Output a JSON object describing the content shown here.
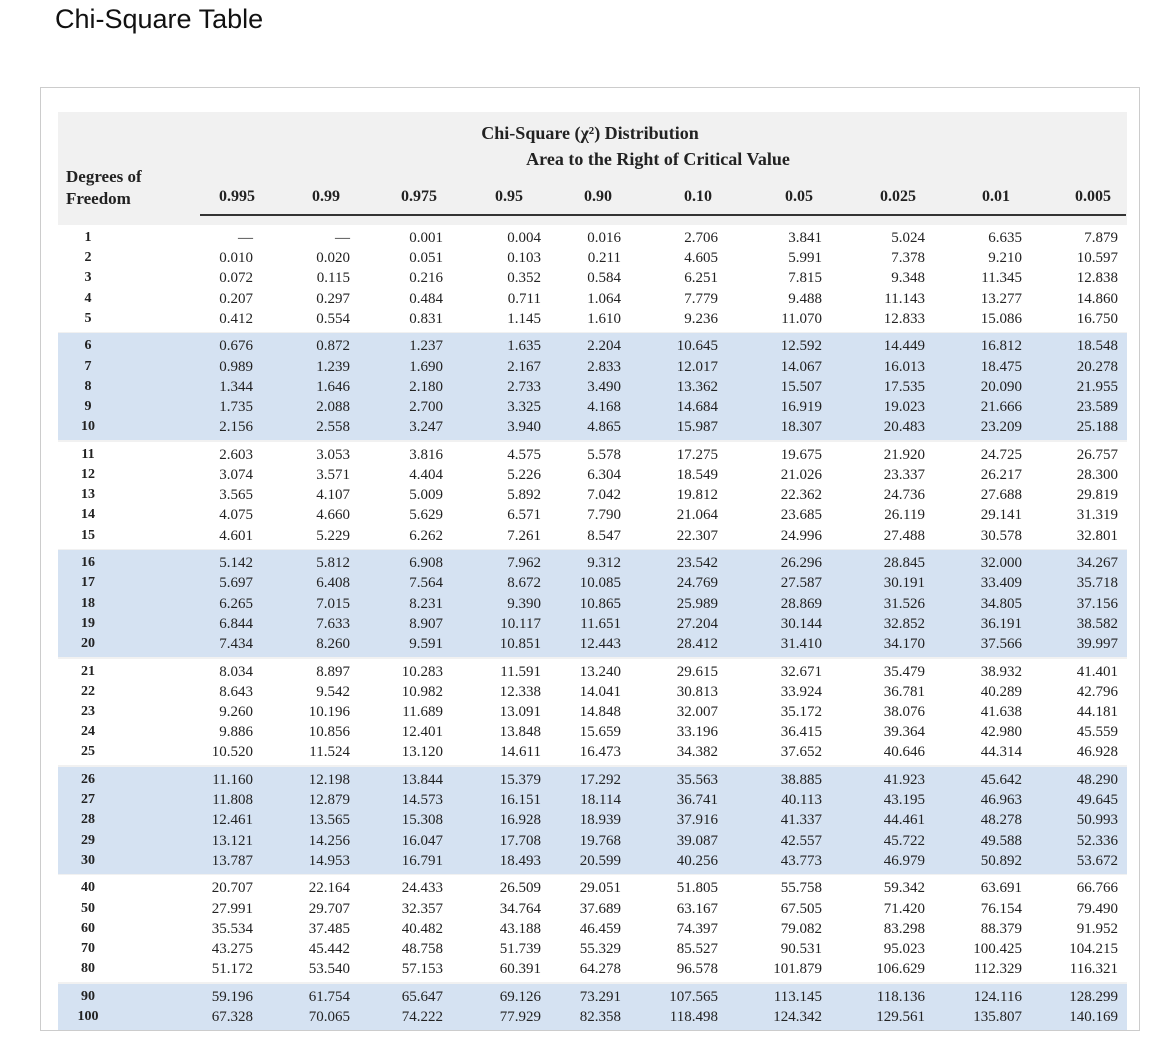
{
  "header": {
    "title": "Chi-Square Table"
  },
  "table": {
    "caption": [
      "Chi-Square (χ²) Distribution",
      "Area to the Right of Critical Value"
    ],
    "row_header": "Degrees of Freedom",
    "columns": [
      "0.995",
      "0.99",
      "0.975",
      "0.95",
      "0.90",
      "0.10",
      "0.05",
      "0.025",
      "0.01",
      "0.005"
    ],
    "groups": [
      [
        [
          "1",
          "—",
          "—",
          "0.001",
          "0.004",
          "0.016",
          "2.706",
          "3.841",
          "5.024",
          "6.635",
          "7.879"
        ],
        [
          "2",
          "0.010",
          "0.020",
          "0.051",
          "0.103",
          "0.211",
          "4.605",
          "5.991",
          "7.378",
          "9.210",
          "10.597"
        ],
        [
          "3",
          "0.072",
          "0.115",
          "0.216",
          "0.352",
          "0.584",
          "6.251",
          "7.815",
          "9.348",
          "11.345",
          "12.838"
        ],
        [
          "4",
          "0.207",
          "0.297",
          "0.484",
          "0.711",
          "1.064",
          "7.779",
          "9.488",
          "11.143",
          "13.277",
          "14.860"
        ],
        [
          "5",
          "0.412",
          "0.554",
          "0.831",
          "1.145",
          "1.610",
          "9.236",
          "11.070",
          "12.833",
          "15.086",
          "16.750"
        ]
      ],
      [
        [
          "6",
          "0.676",
          "0.872",
          "1.237",
          "1.635",
          "2.204",
          "10.645",
          "12.592",
          "14.449",
          "16.812",
          "18.548"
        ],
        [
          "7",
          "0.989",
          "1.239",
          "1.690",
          "2.167",
          "2.833",
          "12.017",
          "14.067",
          "16.013",
          "18.475",
          "20.278"
        ],
        [
          "8",
          "1.344",
          "1.646",
          "2.180",
          "2.733",
          "3.490",
          "13.362",
          "15.507",
          "17.535",
          "20.090",
          "21.955"
        ],
        [
          "9",
          "1.735",
          "2.088",
          "2.700",
          "3.325",
          "4.168",
          "14.684",
          "16.919",
          "19.023",
          "21.666",
          "23.589"
        ],
        [
          "10",
          "2.156",
          "2.558",
          "3.247",
          "3.940",
          "4.865",
          "15.987",
          "18.307",
          "20.483",
          "23.209",
          "25.188"
        ]
      ],
      [
        [
          "11",
          "2.603",
          "3.053",
          "3.816",
          "4.575",
          "5.578",
          "17.275",
          "19.675",
          "21.920",
          "24.725",
          "26.757"
        ],
        [
          "12",
          "3.074",
          "3.571",
          "4.404",
          "5.226",
          "6.304",
          "18.549",
          "21.026",
          "23.337",
          "26.217",
          "28.300"
        ],
        [
          "13",
          "3.565",
          "4.107",
          "5.009",
          "5.892",
          "7.042",
          "19.812",
          "22.362",
          "24.736",
          "27.688",
          "29.819"
        ],
        [
          "14",
          "4.075",
          "4.660",
          "5.629",
          "6.571",
          "7.790",
          "21.064",
          "23.685",
          "26.119",
          "29.141",
          "31.319"
        ],
        [
          "15",
          "4.601",
          "5.229",
          "6.262",
          "7.261",
          "8.547",
          "22.307",
          "24.996",
          "27.488",
          "30.578",
          "32.801"
        ]
      ],
      [
        [
          "16",
          "5.142",
          "5.812",
          "6.908",
          "7.962",
          "9.312",
          "23.542",
          "26.296",
          "28.845",
          "32.000",
          "34.267"
        ],
        [
          "17",
          "5.697",
          "6.408",
          "7.564",
          "8.672",
          "10.085",
          "24.769",
          "27.587",
          "30.191",
          "33.409",
          "35.718"
        ],
        [
          "18",
          "6.265",
          "7.015",
          "8.231",
          "9.390",
          "10.865",
          "25.989",
          "28.869",
          "31.526",
          "34.805",
          "37.156"
        ],
        [
          "19",
          "6.844",
          "7.633",
          "8.907",
          "10.117",
          "11.651",
          "27.204",
          "30.144",
          "32.852",
          "36.191",
          "38.582"
        ],
        [
          "20",
          "7.434",
          "8.260",
          "9.591",
          "10.851",
          "12.443",
          "28.412",
          "31.410",
          "34.170",
          "37.566",
          "39.997"
        ]
      ],
      [
        [
          "21",
          "8.034",
          "8.897",
          "10.283",
          "11.591",
          "13.240",
          "29.615",
          "32.671",
          "35.479",
          "38.932",
          "41.401"
        ],
        [
          "22",
          "8.643",
          "9.542",
          "10.982",
          "12.338",
          "14.041",
          "30.813",
          "33.924",
          "36.781",
          "40.289",
          "42.796"
        ],
        [
          "23",
          "9.260",
          "10.196",
          "11.689",
          "13.091",
          "14.848",
          "32.007",
          "35.172",
          "38.076",
          "41.638",
          "44.181"
        ],
        [
          "24",
          "9.886",
          "10.856",
          "12.401",
          "13.848",
          "15.659",
          "33.196",
          "36.415",
          "39.364",
          "42.980",
          "45.559"
        ],
        [
          "25",
          "10.520",
          "11.524",
          "13.120",
          "14.611",
          "16.473",
          "34.382",
          "37.652",
          "40.646",
          "44.314",
          "46.928"
        ]
      ],
      [
        [
          "26",
          "11.160",
          "12.198",
          "13.844",
          "15.379",
          "17.292",
          "35.563",
          "38.885",
          "41.923",
          "45.642",
          "48.290"
        ],
        [
          "27",
          "11.808",
          "12.879",
          "14.573",
          "16.151",
          "18.114",
          "36.741",
          "40.113",
          "43.195",
          "46.963",
          "49.645"
        ],
        [
          "28",
          "12.461",
          "13.565",
          "15.308",
          "16.928",
          "18.939",
          "37.916",
          "41.337",
          "44.461",
          "48.278",
          "50.993"
        ],
        [
          "29",
          "13.121",
          "14.256",
          "16.047",
          "17.708",
          "19.768",
          "39.087",
          "42.557",
          "45.722",
          "49.588",
          "52.336"
        ],
        [
          "30",
          "13.787",
          "14.953",
          "16.791",
          "18.493",
          "20.599",
          "40.256",
          "43.773",
          "46.979",
          "50.892",
          "53.672"
        ]
      ],
      [
        [
          "40",
          "20.707",
          "22.164",
          "24.433",
          "26.509",
          "29.051",
          "51.805",
          "55.758",
          "59.342",
          "63.691",
          "66.766"
        ],
        [
          "50",
          "27.991",
          "29.707",
          "32.357",
          "34.764",
          "37.689",
          "63.167",
          "67.505",
          "71.420",
          "76.154",
          "79.490"
        ],
        [
          "60",
          "35.534",
          "37.485",
          "40.482",
          "43.188",
          "46.459",
          "74.397",
          "79.082",
          "83.298",
          "88.379",
          "91.952"
        ],
        [
          "70",
          "43.275",
          "45.442",
          "48.758",
          "51.739",
          "55.329",
          "85.527",
          "90.531",
          "95.023",
          "100.425",
          "104.215"
        ],
        [
          "80",
          "51.172",
          "53.540",
          "57.153",
          "60.391",
          "64.278",
          "96.578",
          "101.879",
          "106.629",
          "112.329",
          "116.321"
        ]
      ],
      [
        [
          "90",
          "59.196",
          "61.754",
          "65.647",
          "69.126",
          "73.291",
          "107.565",
          "113.145",
          "118.136",
          "124.116",
          "128.299"
        ],
        [
          "100",
          "67.328",
          "70.065",
          "74.222",
          "77.929",
          "82.358",
          "118.498",
          "124.342",
          "129.561",
          "135.807",
          "140.169"
        ]
      ]
    ]
  }
}
